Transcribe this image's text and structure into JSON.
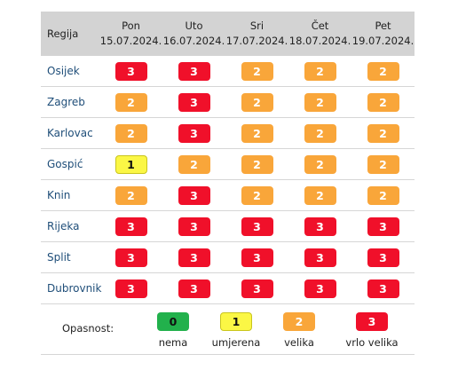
{
  "table": {
    "region_header": "Regija",
    "days": [
      {
        "day": "Pon",
        "date": "15.07.2024."
      },
      {
        "day": "Uto",
        "date": "16.07.2024."
      },
      {
        "day": "Sri",
        "date": "17.07.2024."
      },
      {
        "day": "Čet",
        "date": "18.07.2024."
      },
      {
        "day": "Pet",
        "date": "19.07.2024."
      }
    ],
    "rows": [
      {
        "region": "Osijek",
        "levels": [
          "3",
          "3",
          "2",
          "2",
          "2"
        ]
      },
      {
        "region": "Zagreb",
        "levels": [
          "2",
          "3",
          "2",
          "2",
          "2"
        ]
      },
      {
        "region": "Karlovac",
        "levels": [
          "2",
          "3",
          "2",
          "2",
          "2"
        ]
      },
      {
        "region": "Gospić",
        "levels": [
          "1",
          "2",
          "2",
          "2",
          "2"
        ]
      },
      {
        "region": "Knin",
        "levels": [
          "2",
          "3",
          "2",
          "2",
          "2"
        ]
      },
      {
        "region": "Rijeka",
        "levels": [
          "3",
          "3",
          "3",
          "3",
          "3"
        ]
      },
      {
        "region": "Split",
        "levels": [
          "3",
          "3",
          "3",
          "3",
          "3"
        ]
      },
      {
        "region": "Dubrovnik",
        "levels": [
          "3",
          "3",
          "3",
          "3",
          "3"
        ]
      }
    ]
  },
  "legend": {
    "title": "Opasnost:",
    "items": [
      {
        "value": "0",
        "label": "nema"
      },
      {
        "value": "1",
        "label": "umjerena"
      },
      {
        "value": "2",
        "label": "velika"
      },
      {
        "value": "3",
        "label": "vrlo velika"
      }
    ]
  },
  "colors": {
    "level_0": "#22b14c",
    "level_1": "#fbf745",
    "level_2": "#f9a63a",
    "level_3": "#f0102a",
    "header_bg": "#d3d3d3",
    "region_text": "#1f4e79"
  }
}
